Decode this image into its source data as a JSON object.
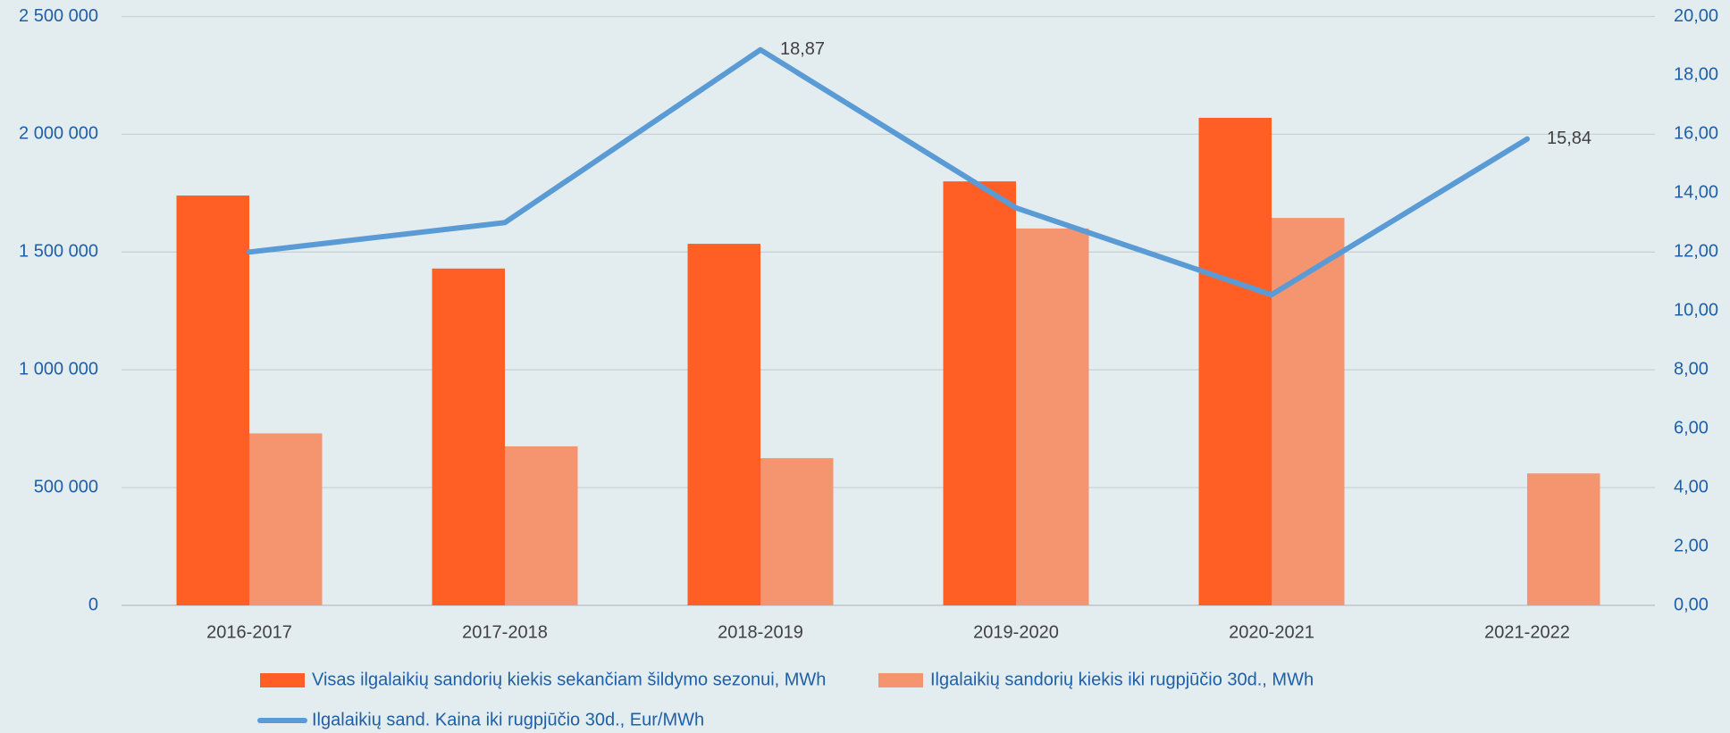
{
  "chart_data": {
    "type": "bar-line",
    "categories": [
      "2016-2017",
      "2017-2018",
      "2018-2019",
      "2019-2020",
      "2020-2021",
      "2021-2022"
    ],
    "series": [
      {
        "name": "Visas ilgalaikių sandorių kiekis sekančiam šildymo sezonui, MWh",
        "color": "#ff5f25",
        "type": "bar",
        "values": [
          1740000,
          1430000,
          1535000,
          1800000,
          2070000,
          null
        ]
      },
      {
        "name": "Ilgalaikių sandorių kiekis iki rugpjūčio 30d., MWh",
        "color": "#f4956f",
        "type": "bar",
        "values": [
          730000,
          675000,
          625000,
          1600000,
          1645000,
          560000
        ]
      },
      {
        "name": "Ilgalaikių sand. Kaina iki rugpjūčio 30d., Eur/MWh",
        "color": "#5b9bd5",
        "type": "line",
        "axis": "y2",
        "values": [
          12.0,
          13.0,
          18.87,
          13.5,
          10.55,
          15.84
        ],
        "value_labels": [
          null,
          null,
          "18,87",
          null,
          null,
          "15,84"
        ]
      }
    ],
    "ylim": [
      0,
      2500000
    ],
    "yticks": [
      0,
      {
        "value": 500000,
        "label": "500 000"
      },
      {
        "value": 1000000,
        "label": "1 000 000"
      },
      {
        "value": 1500000,
        "label": "1 500 000"
      },
      {
        "value": 2000000,
        "label": "2 000 000"
      },
      {
        "value": 2500000,
        "label": "2 500 000"
      }
    ],
    "y2lim": [
      0,
      20
    ],
    "y2ticks": [
      {
        "value": 0,
        "label": "0,00"
      },
      {
        "value": 2,
        "label": "2,00"
      },
      {
        "value": 4,
        "label": "4,00"
      },
      {
        "value": 6,
        "label": "6,00"
      },
      {
        "value": 8,
        "label": "8,00"
      },
      {
        "value": 10,
        "label": "10,00"
      },
      {
        "value": 12,
        "label": "12,00"
      },
      {
        "value": 14,
        "label": "14,00"
      },
      {
        "value": 16,
        "label": "16,00"
      },
      {
        "value": 18,
        "label": "18,00"
      },
      {
        "value": 20,
        "label": "20,00"
      }
    ],
    "grid": true,
    "legend": "bottom"
  }
}
